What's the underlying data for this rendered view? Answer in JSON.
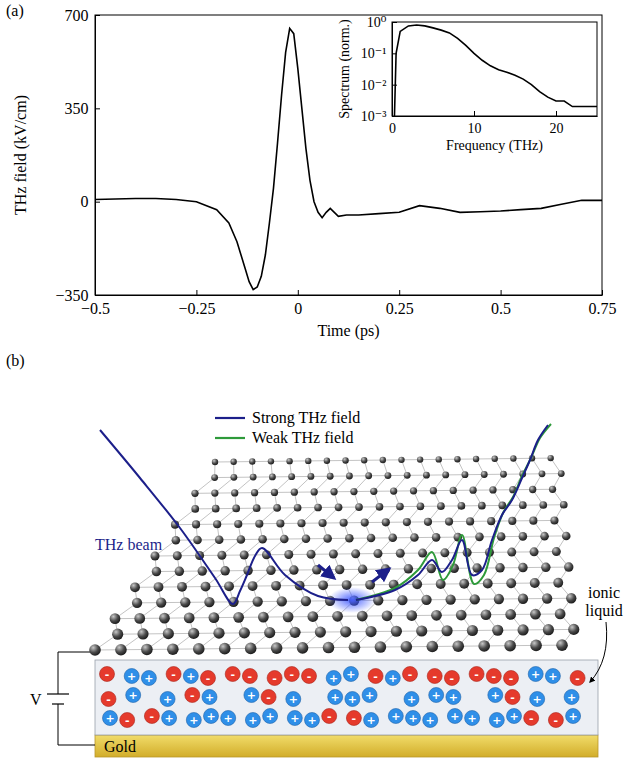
{
  "panel_labels": [
    "(a)",
    "(b)"
  ],
  "chart_data": [
    {
      "type": "line",
      "x_label": "Time (ps)",
      "y_label": "THz field (kV/cm)",
      "x": [
        -0.5,
        -0.45,
        -0.4,
        -0.35,
        -0.3,
        -0.25,
        -0.2,
        -0.17,
        -0.15,
        -0.13,
        -0.12,
        -0.11,
        -0.1,
        -0.09,
        -0.08,
        -0.07,
        -0.06,
        -0.05,
        -0.04,
        -0.03,
        -0.02,
        -0.01,
        0,
        0.01,
        0.02,
        0.03,
        0.04,
        0.05,
        0.06,
        0.07,
        0.08,
        0.09,
        0.1,
        0.12,
        0.15,
        0.2,
        0.25,
        0.3,
        0.35,
        0.4,
        0.45,
        0.5,
        0.55,
        0.6,
        0.65,
        0.7,
        0.75
      ],
      "series": [
        {
          "color": "#000000",
          "values": [
            8,
            10,
            12,
            12,
            8,
            0,
            -30,
            -80,
            -150,
            -250,
            -300,
            -330,
            -320,
            -280,
            -200,
            -80,
            50,
            220,
            400,
            560,
            650,
            630,
            500,
            350,
            200,
            80,
            0,
            -40,
            -60,
            -40,
            -25,
            -40,
            -55,
            -50,
            -50,
            -45,
            -40,
            -15,
            -25,
            -40,
            -38,
            -35,
            -30,
            -25,
            -10,
            5,
            5
          ]
        }
      ],
      "xlim": [
        -0.5,
        0.75
      ],
      "xticks": [
        {
          "value": -0.5,
          "label": "−0.5"
        },
        {
          "value": -0.25,
          "label": "−0.25"
        },
        0,
        0.25,
        0.5,
        0.75
      ],
      "ylim": [
        -350,
        700
      ],
      "yticks": [
        {
          "value": -350,
          "label": "−350"
        },
        0,
        350,
        700
      ]
    },
    {
      "type": "line",
      "x_label": "Frequency (THz)",
      "y_label": "Spectrum (norm.)",
      "log": "y",
      "x": [
        0.3,
        0.5,
        1,
        2,
        3,
        4,
        5,
        6,
        7,
        8,
        9,
        10,
        11,
        12,
        13,
        14,
        15,
        16,
        17,
        18,
        19,
        20,
        21,
        22,
        23,
        24,
        25
      ],
      "series": [
        {
          "color": "#000000",
          "values": [
            0.001,
            0.1,
            0.5,
            0.75,
            0.8,
            0.75,
            0.65,
            0.55,
            0.45,
            0.3,
            0.18,
            0.1,
            0.06,
            0.04,
            0.03,
            0.025,
            0.02,
            0.015,
            0.01,
            0.006,
            0.004,
            0.003,
            0.003,
            0.002,
            0.002,
            0.002,
            0.002
          ]
        }
      ],
      "xlim": [
        0,
        25
      ],
      "xticks": [
        0,
        10,
        20
      ],
      "ylim": [
        0.001,
        1
      ],
      "yticks": [
        {
          "value": 0.001,
          "label": "10⁻³"
        },
        {
          "value": 0.01,
          "label": "10⁻²"
        },
        {
          "value": 0.1,
          "label": "10⁻¹"
        },
        {
          "value": 1,
          "label": "10⁰"
        }
      ]
    }
  ],
  "diagram": {
    "legend": [
      {
        "label": "Strong THz field",
        "color": "#1c1f8a"
      },
      {
        "label": "Weak THz field",
        "color": "#2e9a3a"
      }
    ],
    "beam_label": "THz beam",
    "liquid_label": "ionic liquid",
    "voltage_label": "V",
    "electrode_label": "Gold",
    "ion_signs": {
      "cation": "+",
      "anion": "-"
    }
  }
}
